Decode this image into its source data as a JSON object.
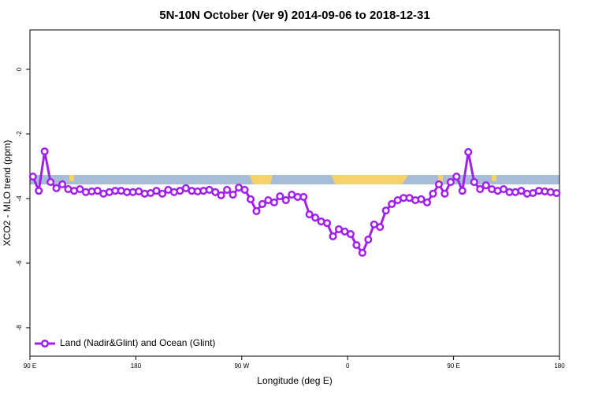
{
  "chart_data": {
    "type": "line",
    "title": "5N-10N October (Ver 9)   2014-09-06 to 2018-12-31",
    "x_label": "Longitude (deg E)",
    "y_label": "XCO2 - MLO trend (ppm)",
    "xlim": [
      90,
      540
    ],
    "ylim": [
      -8.88,
      1.22
    ],
    "xticks": [
      {
        "value": 90,
        "label": "90 E"
      },
      180,
      {
        "value": 270,
        "label": "90 W"
      },
      {
        "value": 360,
        "label": "0"
      },
      {
        "value": 450,
        "label": "90 E"
      },
      {
        "value": 540,
        "label": "180"
      }
    ],
    "yticks": [
      0,
      -2,
      -4,
      -6,
      -8
    ],
    "legend": "bottom-left",
    "x": [
      92.5,
      97.5,
      102.5,
      107.5,
      112.5,
      117.5,
      122.5,
      127.5,
      132.5,
      137.5,
      142.5,
      147.5,
      152.5,
      157.5,
      162.5,
      167.5,
      172.5,
      177.5,
      182.5,
      187.5,
      192.5,
      197.5,
      202.5,
      207.5,
      212.5,
      217.5,
      222.5,
      227.5,
      232.5,
      237.5,
      242.5,
      247.5,
      252.5,
      257.5,
      262.5,
      267.5,
      272.5,
      277.5,
      282.5,
      287.5,
      292.5,
      297.5,
      302.5,
      307.5,
      312.5,
      317.5,
      322.5,
      327.5,
      332.5,
      337.5,
      342.5,
      347.5,
      352.5,
      357.5,
      362.5,
      367.5,
      372.5,
      377.5,
      382.5,
      387.5,
      392.5,
      397.5,
      402.5,
      407.5,
      412.5,
      417.5,
      422.5,
      427.5,
      432.5,
      437.5,
      442.5,
      447.5,
      452.5,
      457.5,
      462.5,
      467.5,
      472.5,
      477.5,
      482.5,
      487.5,
      492.5,
      497.5,
      502.5,
      507.5,
      512.5,
      517.5,
      522.5,
      527.5,
      532.5,
      537.5
    ],
    "series": [
      {
        "name": "Land (Nadir&Glint) and Ocean (Glint)",
        "color": "#a020f0",
        "values": [
          -3.32,
          -3.76,
          -2.54,
          -3.49,
          -3.68,
          -3.56,
          -3.71,
          -3.76,
          -3.71,
          -3.8,
          -3.78,
          -3.76,
          -3.85,
          -3.8,
          -3.76,
          -3.76,
          -3.8,
          -3.8,
          -3.78,
          -3.85,
          -3.83,
          -3.76,
          -3.85,
          -3.73,
          -3.8,
          -3.76,
          -3.68,
          -3.76,
          -3.78,
          -3.76,
          -3.73,
          -3.8,
          -3.9,
          -3.73,
          -3.88,
          -3.66,
          -3.73,
          -4.02,
          -4.39,
          -4.17,
          -4.05,
          -4.12,
          -3.93,
          -4.05,
          -3.88,
          -3.95,
          -3.95,
          -4.49,
          -4.59,
          -4.71,
          -4.76,
          -5.17,
          -4.95,
          -5.02,
          -5.1,
          -5.44,
          -5.68,
          -5.27,
          -4.8,
          -4.88,
          -4.37,
          -4.17,
          -4.05,
          -3.98,
          -3.98,
          -4.05,
          -4.02,
          -4.12,
          -3.85,
          -3.56,
          -3.85,
          -3.49,
          -3.32,
          -3.76,
          -2.56,
          -3.49,
          -3.71,
          -3.59,
          -3.71,
          -3.76,
          -3.71,
          -3.8,
          -3.8,
          -3.76,
          -3.85,
          -3.83,
          -3.76,
          -3.78,
          -3.8,
          -3.83
        ]
      }
    ]
  }
}
